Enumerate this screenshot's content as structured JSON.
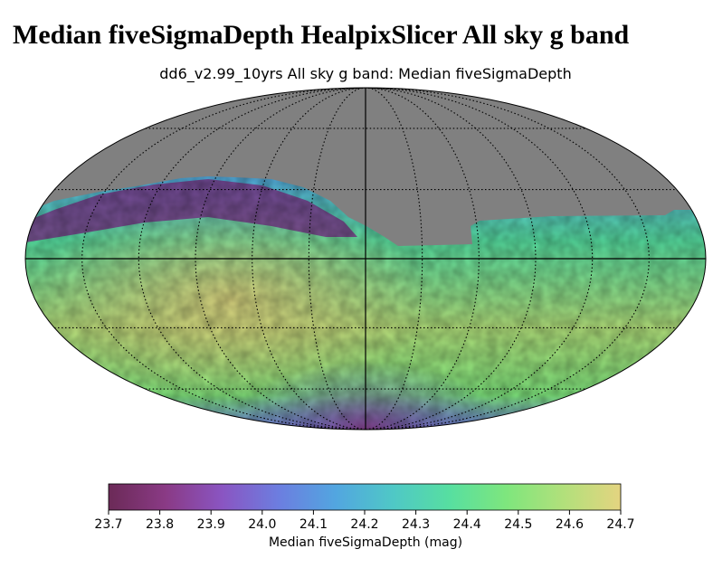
{
  "page": {
    "heading": "Median fiveSigmaDepth HealpixSlicer All sky g band"
  },
  "chart_data": {
    "type": "heatmap",
    "projection": "mollweide",
    "title": "dd6_v2.99_10yrs All sky g band: Median fiveSigmaDepth",
    "colorbar": {
      "label": "Median fiveSigmaDepth (mag)",
      "range": [
        23.7,
        24.7
      ],
      "ticks": [
        "23.7",
        "23.8",
        "23.9",
        "24.0",
        "24.1",
        "24.2",
        "24.3",
        "24.4",
        "24.5",
        "24.6",
        "24.7"
      ],
      "colormap": [
        "#6b2a57",
        "#8a3a85",
        "#8a55c2",
        "#6c7ee0",
        "#52a6e0",
        "#4fc8c6",
        "#57dfa0",
        "#7fe67d",
        "#b2e07b",
        "#e4d480"
      ]
    },
    "no_data_color": "#808080",
    "grid": true,
    "map_description_regions": [
      {
        "region": "north-cap",
        "value": "no data"
      },
      {
        "region": "northern-band-west",
        "value": 23.8
      },
      {
        "region": "mid-latitudes",
        "value": 24.3
      },
      {
        "region": "equator",
        "value": 24.4
      },
      {
        "region": "south-west",
        "value": 24.6
      },
      {
        "region": "south-east",
        "value": 24.4
      },
      {
        "region": "south-pole",
        "value": 24.0
      }
    ]
  }
}
